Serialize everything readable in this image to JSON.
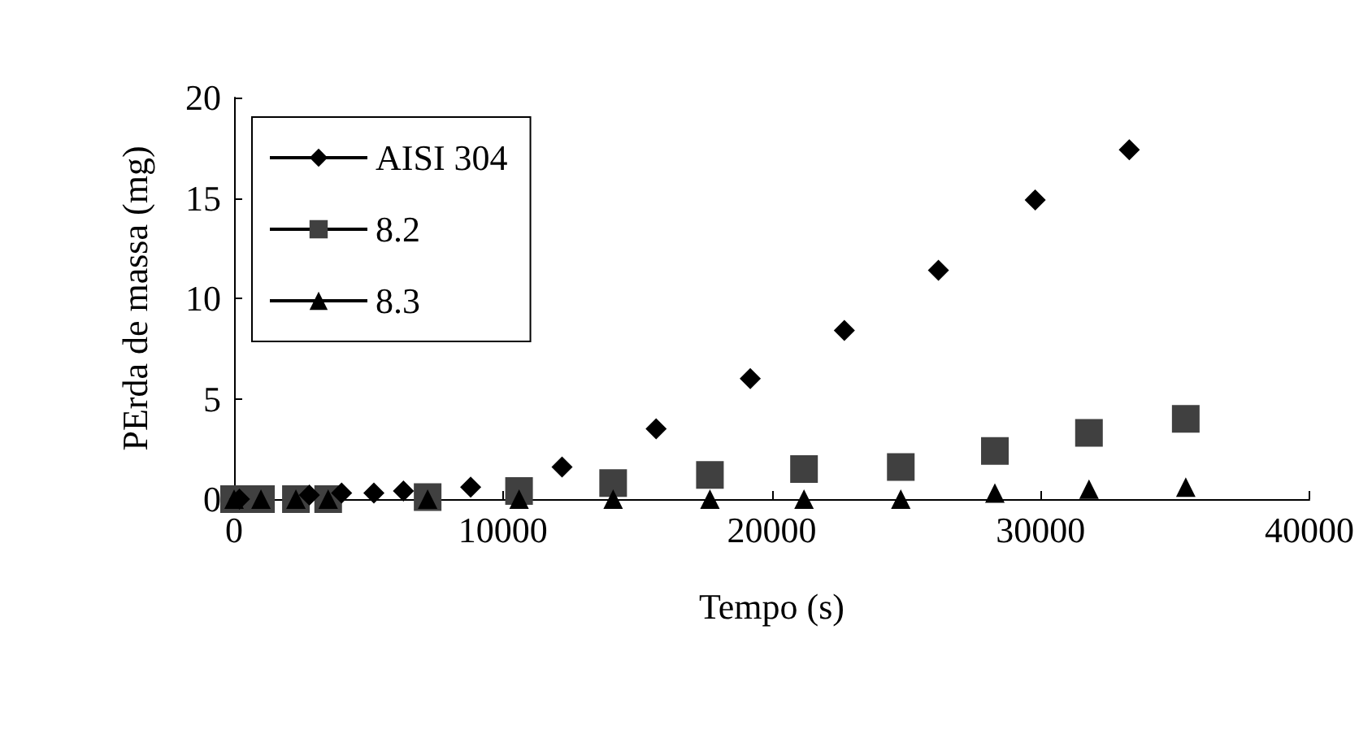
{
  "chart_data": {
    "type": "scatter",
    "xlabel": "Tempo (s)",
    "ylabel": "PErda de massa (mg)",
    "xlim": [
      0,
      40000
    ],
    "xticks": [
      0,
      10000,
      20000,
      30000,
      40000
    ],
    "ylim": [
      0,
      20
    ],
    "yticks": [
      0,
      5,
      10,
      15,
      20
    ],
    "grid": false,
    "legend": "top left",
    "line_style": "solid",
    "series": [
      {
        "name": "AISI 304",
        "color": "#000000",
        "marker": "diamond",
        "x": [
          200,
          1200,
          2800,
          4000,
          5200,
          6300,
          8800,
          12200,
          15700,
          19200,
          22700,
          26200,
          29800,
          33300
        ],
        "values": [
          0,
          null,
          0.2,
          0.3,
          0.3,
          0.4,
          0.6,
          1.6,
          3.5,
          6.0,
          8.4,
          11.4,
          14.9,
          17.4
        ]
      },
      {
        "name": "8.2",
        "color": "#404040",
        "marker": "square",
        "x": [
          0,
          1000,
          2300,
          3500,
          7200,
          10600,
          14100,
          17700,
          21200,
          24800,
          28300,
          31800,
          35400
        ],
        "values": [
          0,
          0,
          0,
          0,
          0.1,
          0.4,
          0.8,
          1.2,
          1.5,
          1.6,
          2.4,
          3.3,
          4.0
        ]
      },
      {
        "name": "8.3",
        "color": "#000000",
        "marker": "triangle",
        "x": [
          0,
          1000,
          2300,
          3500,
          7200,
          10600,
          14100,
          17700,
          21200,
          24800,
          28300,
          31800,
          35400
        ],
        "values": [
          0,
          0,
          0,
          0,
          0,
          0,
          0,
          0,
          0,
          0,
          0.3,
          0.5,
          0.6
        ]
      }
    ]
  }
}
